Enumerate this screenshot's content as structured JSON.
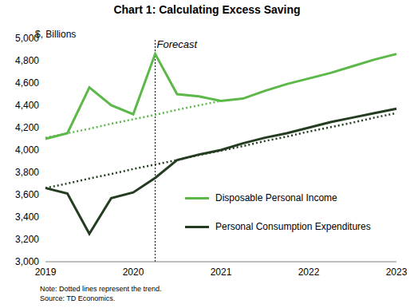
{
  "chart_data": {
    "type": "line",
    "title": "Chart 1: Calculating Excess Saving",
    "y_label": "$, Billions",
    "categories": [
      "2019",
      null,
      null,
      null,
      "2020",
      null,
      null,
      null,
      "2021",
      null,
      null,
      null,
      "2022",
      null,
      null,
      null,
      "2023"
    ],
    "series": [
      {
        "name": "Disposable Personal Income",
        "color": "#5cb848",
        "values": [
          4100,
          4150,
          4560,
          4400,
          4320,
          4860,
          4500,
          4480,
          4440,
          4460,
          4530,
          4590,
          4640,
          4690,
          4750,
          4810,
          4860
        ],
        "trend": [
          4110,
          4150,
          4190,
          4235,
          4275,
          4315,
          4360,
          4400,
          4440,
          null,
          null,
          null,
          null,
          null,
          null,
          null,
          null
        ]
      },
      {
        "name": "Personal Consumption Expenditures",
        "color": "#243d20",
        "values": [
          3660,
          3610,
          3250,
          3570,
          3620,
          3750,
          3910,
          3960,
          4000,
          4060,
          4110,
          4150,
          4200,
          4250,
          4290,
          4330,
          4370
        ],
        "trend": [
          3660,
          3700,
          3745,
          3785,
          3830,
          3870,
          3910,
          3955,
          3995,
          4035,
          4080,
          4120,
          4165,
          4205,
          4245,
          4290,
          4330
        ]
      }
    ],
    "ylim": [
      3000,
      5000
    ],
    "yticks": [
      {
        "value": 3000,
        "label": "3,000"
      },
      {
        "value": 3200,
        "label": "3,200"
      },
      {
        "value": 3400,
        "label": "3,400"
      },
      {
        "value": 3600,
        "label": "3,600"
      },
      {
        "value": 3800,
        "label": "3,800"
      },
      {
        "value": 4000,
        "label": "4,000"
      },
      {
        "value": 4200,
        "label": "4,200"
      },
      {
        "value": 4400,
        "label": "4,400"
      },
      {
        "value": 4600,
        "label": "4,600"
      },
      {
        "value": 4800,
        "label": "4,800"
      },
      {
        "value": 5000,
        "label": "5,000"
      }
    ],
    "annotations": [
      {
        "text": "Forecast",
        "x": 5
      }
    ],
    "note": "Note: Dotted lines represent the trend.",
    "source": "Source: TD Economics.",
    "grid": false,
    "legend": "lower right"
  }
}
